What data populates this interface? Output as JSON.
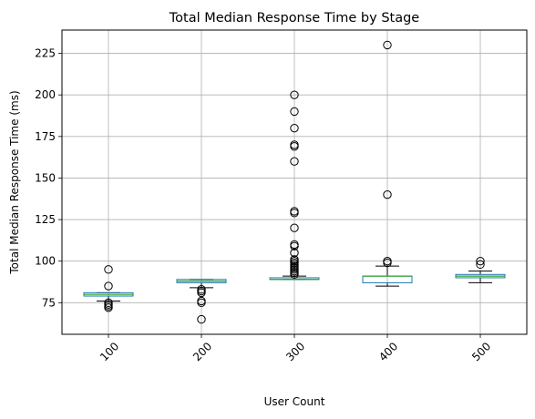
{
  "chart_data": {
    "type": "boxplot",
    "title": "Total Median Response Time by Stage",
    "xlabel": "User Count",
    "ylabel": "Total Median Response Time (ms)",
    "ylim": [
      56,
      239
    ],
    "yticks": [
      75,
      100,
      125,
      150,
      175,
      200,
      225
    ],
    "grid": true,
    "x_tick_rotation_deg": 45,
    "colors": {
      "box": "#1f77b4",
      "median": "#2ca02c",
      "whisker": "#000000",
      "grid": "#b0b0b0"
    },
    "boxes": [
      {
        "category": "100",
        "q1": 79,
        "median": 80,
        "q3": 81,
        "whisker_low": 76,
        "whisker_high": 81,
        "outliers": [
          95,
          85,
          75,
          74,
          73,
          72
        ]
      },
      {
        "category": "200",
        "q1": 87,
        "median": 88,
        "q3": 89,
        "whisker_low": 84,
        "whisker_high": 89,
        "outliers": [
          83,
          82,
          81,
          76,
          75,
          65
        ]
      },
      {
        "category": "300",
        "q1": 89,
        "median": 89,
        "q3": 90,
        "whisker_low": 89,
        "whisker_high": 91,
        "outliers": [
          200,
          190,
          180,
          170,
          169,
          160,
          130,
          129,
          120,
          110,
          109,
          105,
          101,
          100,
          99,
          98,
          97,
          96,
          95,
          94,
          93,
          92
        ]
      },
      {
        "category": "400",
        "q1": 87,
        "median": 91,
        "q3": 91,
        "whisker_low": 85,
        "whisker_high": 97,
        "outliers": [
          230,
          140,
          100,
          99
        ]
      },
      {
        "category": "500",
        "q1": 90,
        "median": 91,
        "q3": 92,
        "whisker_low": 87,
        "whisker_high": 94,
        "outliers": [
          100,
          98
        ]
      }
    ]
  }
}
